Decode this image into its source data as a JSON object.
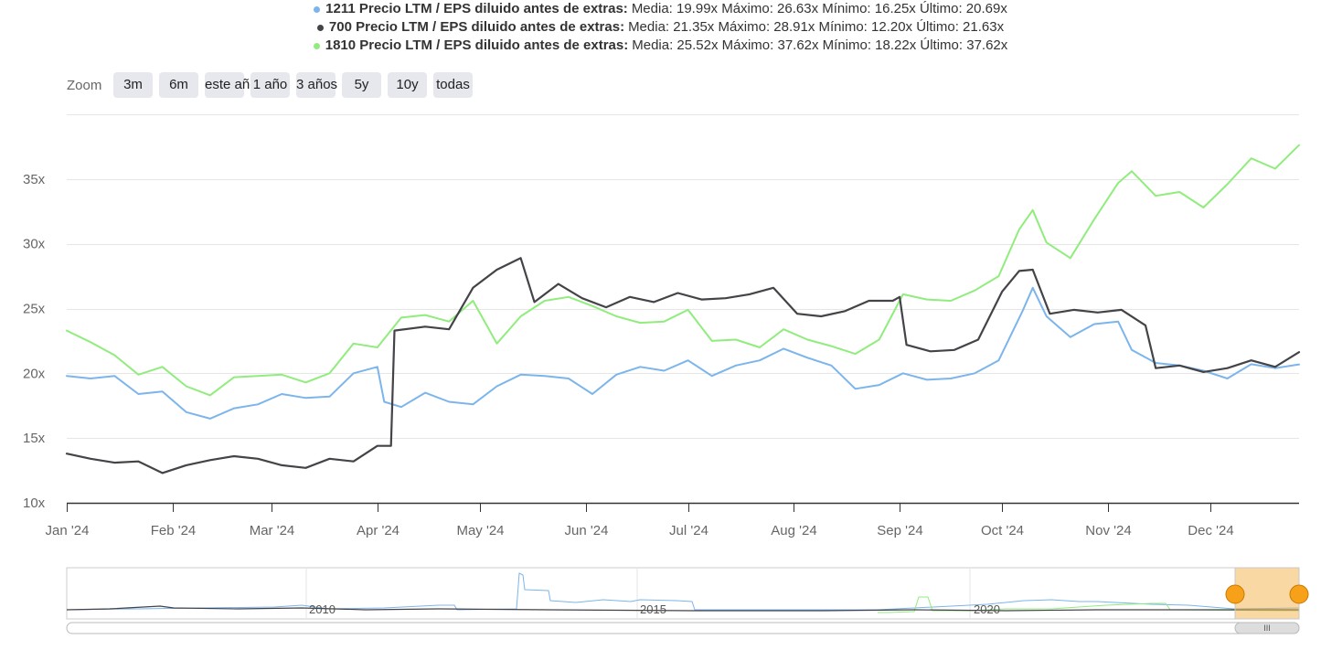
{
  "legend": [
    {
      "name": "1211 Precio LTM / EPS diluido antes de extras:",
      "stats": "Media: 19.99x Máximo: 26.63x Mínimo: 16.25x Último: 20.69x",
      "color": "#7cb5ec"
    },
    {
      "name": "700 Precio LTM / EPS diluido antes de extras:",
      "stats": "Media: 21.35x Máximo: 28.91x Mínimo: 12.20x Último: 21.63x",
      "color": "#434348"
    },
    {
      "name": "1810 Precio LTM / EPS diluido antes de extras:",
      "stats": "Media: 25.52x Máximo: 37.62x Mínimo: 18.22x Último: 37.62x",
      "color": "#90ed7d"
    }
  ],
  "zoom": {
    "label": "Zoom",
    "buttons": [
      "3m",
      "6m",
      "este año",
      "1 año",
      "3 años",
      "5y",
      "10y",
      "todas"
    ]
  },
  "navigator": {
    "year_labels": [
      "2010",
      "2015",
      "2020"
    ],
    "scroll_grip": "III"
  },
  "chart_data": {
    "type": "line",
    "x_labels": [
      "Jan '24",
      "Feb '24",
      "Mar '24",
      "Apr '24",
      "May '24",
      "Jun '24",
      "Jul '24",
      "Aug '24",
      "Sep '24",
      "Oct '24",
      "Nov '24",
      "Dec '24"
    ],
    "y_tick_labels": [
      "10x",
      "15x",
      "20x",
      "25x",
      "30x",
      "35x"
    ],
    "ylim": [
      10,
      40
    ],
    "grid": true,
    "legend_position": "top-center",
    "series": [
      {
        "name": "1211 Precio LTM / EPS diluido antes de extras",
        "color": "#7cb5ec",
        "points": [
          [
            "2024-01-01",
            19.8
          ],
          [
            "2024-01-08",
            19.6
          ],
          [
            "2024-01-15",
            19.8
          ],
          [
            "2024-01-22",
            18.4
          ],
          [
            "2024-01-29",
            18.6
          ],
          [
            "2024-02-05",
            17.0
          ],
          [
            "2024-02-12",
            16.5
          ],
          [
            "2024-02-19",
            17.3
          ],
          [
            "2024-02-26",
            17.6
          ],
          [
            "2024-03-04",
            18.4
          ],
          [
            "2024-03-11",
            18.1
          ],
          [
            "2024-03-18",
            18.2
          ],
          [
            "2024-03-25",
            20.0
          ],
          [
            "2024-04-01",
            20.5
          ],
          [
            "2024-04-03",
            17.8
          ],
          [
            "2024-04-08",
            17.4
          ],
          [
            "2024-04-15",
            18.5
          ],
          [
            "2024-04-22",
            17.8
          ],
          [
            "2024-04-29",
            17.6
          ],
          [
            "2024-05-06",
            19.0
          ],
          [
            "2024-05-13",
            19.9
          ],
          [
            "2024-05-20",
            19.8
          ],
          [
            "2024-05-27",
            19.6
          ],
          [
            "2024-06-03",
            18.4
          ],
          [
            "2024-06-10",
            19.9
          ],
          [
            "2024-06-17",
            20.5
          ],
          [
            "2024-06-24",
            20.2
          ],
          [
            "2024-07-01",
            21.0
          ],
          [
            "2024-07-08",
            19.8
          ],
          [
            "2024-07-15",
            20.6
          ],
          [
            "2024-07-22",
            21.0
          ],
          [
            "2024-07-29",
            21.9
          ],
          [
            "2024-08-05",
            21.2
          ],
          [
            "2024-08-12",
            20.6
          ],
          [
            "2024-08-19",
            18.8
          ],
          [
            "2024-08-26",
            19.1
          ],
          [
            "2024-09-02",
            20.0
          ],
          [
            "2024-09-09",
            19.5
          ],
          [
            "2024-09-16",
            19.6
          ],
          [
            "2024-09-23",
            20.0
          ],
          [
            "2024-09-30",
            21.0
          ],
          [
            "2024-10-07",
            24.8
          ],
          [
            "2024-10-10",
            26.6
          ],
          [
            "2024-10-14",
            24.4
          ],
          [
            "2024-10-21",
            22.8
          ],
          [
            "2024-10-28",
            23.8
          ],
          [
            "2024-11-04",
            24.0
          ],
          [
            "2024-11-08",
            21.8
          ],
          [
            "2024-11-15",
            20.8
          ],
          [
            "2024-11-22",
            20.6
          ],
          [
            "2024-11-29",
            20.2
          ],
          [
            "2024-12-06",
            19.6
          ],
          [
            "2024-12-13",
            20.7
          ],
          [
            "2024-12-20",
            20.4
          ],
          [
            "2024-12-27",
            20.69
          ]
        ]
      },
      {
        "name": "700 Precio LTM / EPS diluido antes de extras",
        "color": "#434348",
        "points": [
          [
            "2024-01-01",
            13.8
          ],
          [
            "2024-01-08",
            13.4
          ],
          [
            "2024-01-15",
            13.1
          ],
          [
            "2024-01-22",
            13.2
          ],
          [
            "2024-01-29",
            12.3
          ],
          [
            "2024-02-05",
            12.9
          ],
          [
            "2024-02-12",
            13.3
          ],
          [
            "2024-02-19",
            13.6
          ],
          [
            "2024-02-26",
            13.4
          ],
          [
            "2024-03-04",
            12.9
          ],
          [
            "2024-03-11",
            12.7
          ],
          [
            "2024-03-18",
            13.4
          ],
          [
            "2024-03-25",
            13.2
          ],
          [
            "2024-04-01",
            14.4
          ],
          [
            "2024-04-05",
            14.4
          ],
          [
            "2024-04-06",
            23.3
          ],
          [
            "2024-04-15",
            23.6
          ],
          [
            "2024-04-22",
            23.4
          ],
          [
            "2024-04-29",
            26.6
          ],
          [
            "2024-05-06",
            28.0
          ],
          [
            "2024-05-13",
            28.9
          ],
          [
            "2024-05-17",
            25.5
          ],
          [
            "2024-05-24",
            26.9
          ],
          [
            "2024-05-31",
            25.8
          ],
          [
            "2024-06-07",
            25.1
          ],
          [
            "2024-06-14",
            25.9
          ],
          [
            "2024-06-21",
            25.5
          ],
          [
            "2024-06-28",
            26.2
          ],
          [
            "2024-07-05",
            25.7
          ],
          [
            "2024-07-12",
            25.8
          ],
          [
            "2024-07-19",
            26.1
          ],
          [
            "2024-07-26",
            26.6
          ],
          [
            "2024-08-02",
            24.6
          ],
          [
            "2024-08-09",
            24.4
          ],
          [
            "2024-08-16",
            24.8
          ],
          [
            "2024-08-23",
            25.6
          ],
          [
            "2024-08-30",
            25.6
          ],
          [
            "2024-09-01",
            25.9
          ],
          [
            "2024-09-03",
            22.2
          ],
          [
            "2024-09-10",
            21.7
          ],
          [
            "2024-09-17",
            21.8
          ],
          [
            "2024-09-24",
            22.6
          ],
          [
            "2024-10-01",
            26.3
          ],
          [
            "2024-10-06",
            27.9
          ],
          [
            "2024-10-10",
            28.0
          ],
          [
            "2024-10-15",
            24.6
          ],
          [
            "2024-10-22",
            24.9
          ],
          [
            "2024-10-29",
            24.7
          ],
          [
            "2024-11-05",
            24.9
          ],
          [
            "2024-11-12",
            23.7
          ],
          [
            "2024-11-15",
            20.4
          ],
          [
            "2024-11-22",
            20.6
          ],
          [
            "2024-11-29",
            20.1
          ],
          [
            "2024-12-06",
            20.4
          ],
          [
            "2024-12-13",
            21.0
          ],
          [
            "2024-12-20",
            20.5
          ],
          [
            "2024-12-27",
            21.63
          ]
        ]
      },
      {
        "name": "1810 Precio LTM / EPS diluido antes de extras",
        "color": "#90ed7d",
        "points": [
          [
            "2024-01-01",
            23.3
          ],
          [
            "2024-01-08",
            22.4
          ],
          [
            "2024-01-15",
            21.4
          ],
          [
            "2024-01-22",
            19.9
          ],
          [
            "2024-01-29",
            20.5
          ],
          [
            "2024-02-05",
            19.0
          ],
          [
            "2024-02-12",
            18.3
          ],
          [
            "2024-02-19",
            19.7
          ],
          [
            "2024-02-26",
            19.8
          ],
          [
            "2024-03-04",
            19.9
          ],
          [
            "2024-03-11",
            19.3
          ],
          [
            "2024-03-18",
            20.0
          ],
          [
            "2024-03-25",
            22.3
          ],
          [
            "2024-04-01",
            22.0
          ],
          [
            "2024-04-08",
            24.3
          ],
          [
            "2024-04-15",
            24.5
          ],
          [
            "2024-04-22",
            24.0
          ],
          [
            "2024-04-29",
            25.6
          ],
          [
            "2024-05-06",
            22.3
          ],
          [
            "2024-05-13",
            24.4
          ],
          [
            "2024-05-20",
            25.6
          ],
          [
            "2024-05-27",
            25.9
          ],
          [
            "2024-06-03",
            25.2
          ],
          [
            "2024-06-10",
            24.4
          ],
          [
            "2024-06-17",
            23.9
          ],
          [
            "2024-06-24",
            24.0
          ],
          [
            "2024-07-01",
            24.9
          ],
          [
            "2024-07-08",
            22.5
          ],
          [
            "2024-07-15",
            22.6
          ],
          [
            "2024-07-22",
            22.0
          ],
          [
            "2024-07-29",
            23.4
          ],
          [
            "2024-08-05",
            22.6
          ],
          [
            "2024-08-12",
            22.1
          ],
          [
            "2024-08-19",
            21.5
          ],
          [
            "2024-08-26",
            22.6
          ],
          [
            "2024-09-02",
            26.1
          ],
          [
            "2024-09-09",
            25.7
          ],
          [
            "2024-09-16",
            25.6
          ],
          [
            "2024-09-23",
            26.4
          ],
          [
            "2024-09-30",
            27.5
          ],
          [
            "2024-10-06",
            31.1
          ],
          [
            "2024-10-10",
            32.6
          ],
          [
            "2024-10-14",
            30.1
          ],
          [
            "2024-10-21",
            28.9
          ],
          [
            "2024-10-28",
            31.9
          ],
          [
            "2024-11-04",
            34.7
          ],
          [
            "2024-11-08",
            35.6
          ],
          [
            "2024-11-15",
            33.7
          ],
          [
            "2024-11-22",
            34.0
          ],
          [
            "2024-11-29",
            32.8
          ],
          [
            "2024-12-06",
            34.6
          ],
          [
            "2024-12-13",
            36.6
          ],
          [
            "2024-12-20",
            35.8
          ],
          [
            "2024-12-27",
            37.62
          ]
        ]
      }
    ]
  }
}
